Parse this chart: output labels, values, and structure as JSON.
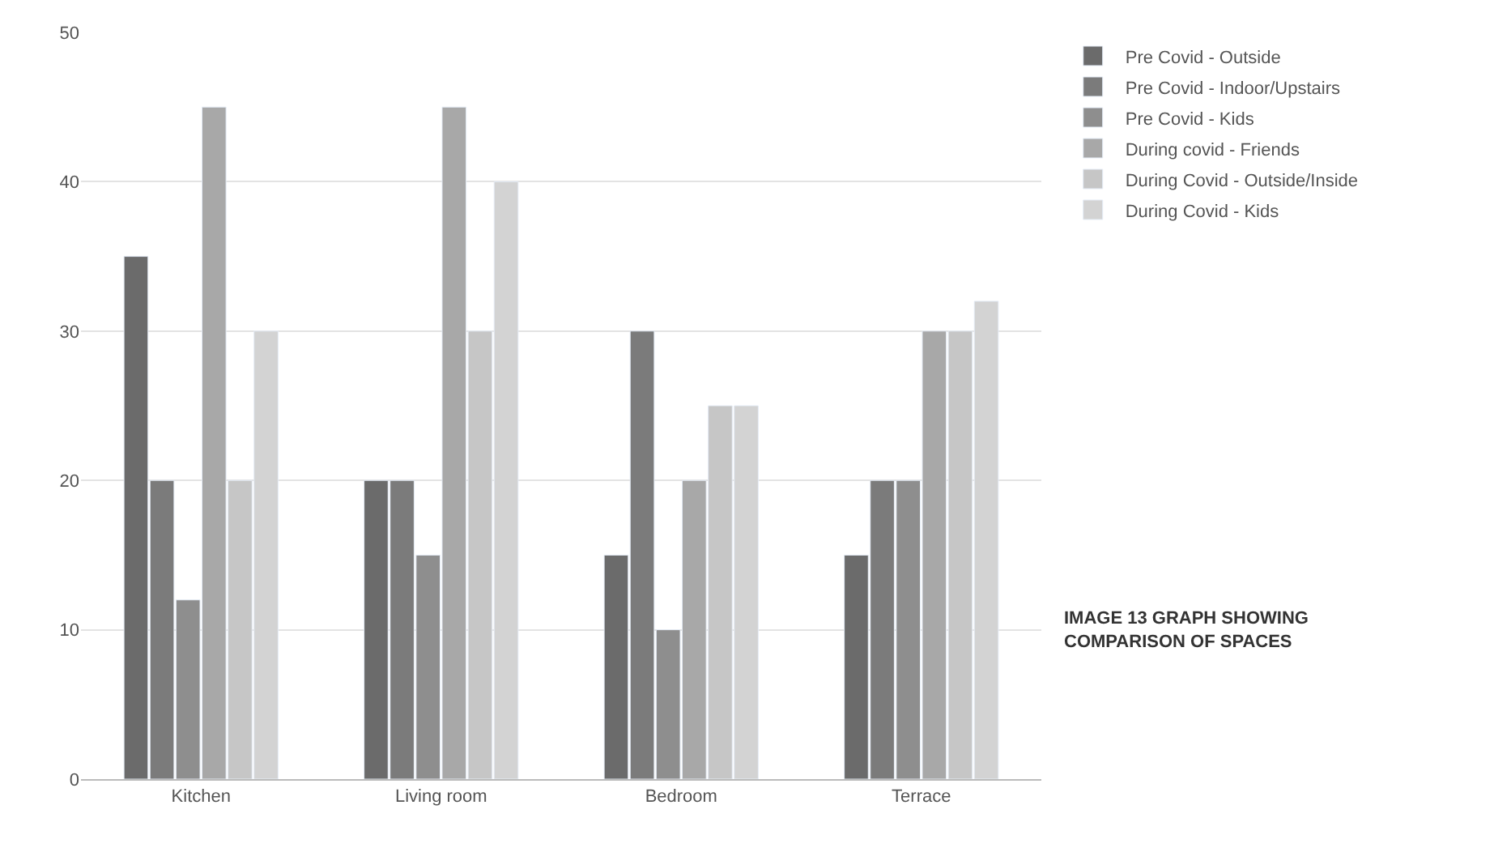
{
  "chart_data": {
    "type": "bar",
    "categories": [
      "Kitchen",
      "Living room",
      "Bedroom",
      "Terrace"
    ],
    "series": [
      {
        "name": "Pre Covid - Outside",
        "color": "#6b6b6b",
        "values": [
          35,
          20,
          15,
          15
        ]
      },
      {
        "name": "Pre Covid - Indoor/Upstairs",
        "color": "#7b7b7b",
        "values": [
          20,
          20,
          30,
          20
        ]
      },
      {
        "name": "Pre Covid - Kids",
        "color": "#8e8e8e",
        "values": [
          12,
          15,
          10,
          20
        ]
      },
      {
        "name": "During covid - Friends",
        "color": "#a8a8a8",
        "values": [
          45,
          45,
          20,
          30
        ]
      },
      {
        "name": "During Covid - Outside/Inside",
        "color": "#c6c6c6",
        "values": [
          20,
          30,
          25,
          30
        ]
      },
      {
        "name": "During Covid - Kids",
        "color": "#d3d3d3",
        "values": [
          30,
          40,
          25,
          32
        ]
      }
    ],
    "ylim": [
      0,
      50
    ],
    "yticks": [
      0,
      10,
      20,
      30,
      40,
      50
    ],
    "grid": "y",
    "legend": "top right",
    "annotations": [
      "IMAGE 13 GRAPH SHOWING COMPARISON OF SPACES"
    ]
  }
}
